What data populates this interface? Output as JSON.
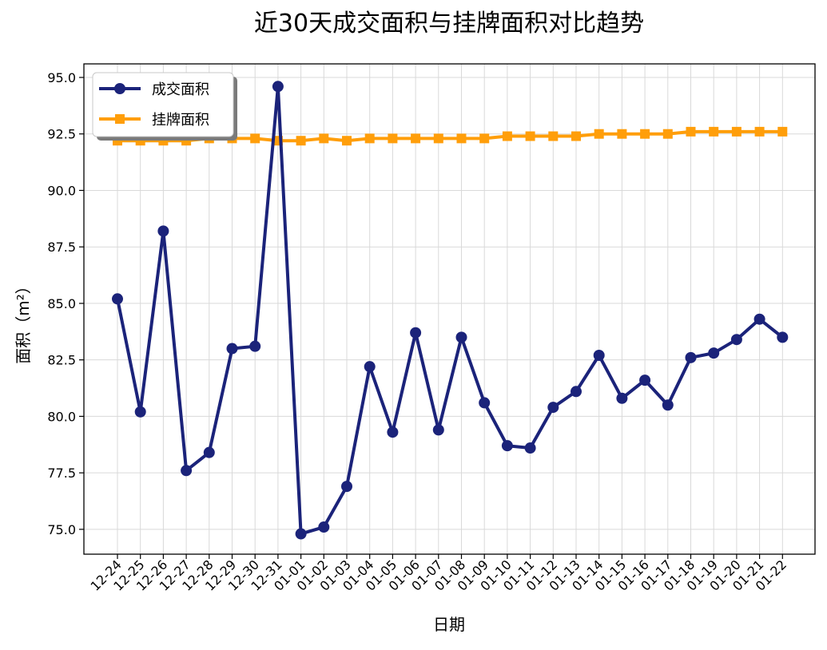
{
  "chart_data": {
    "type": "line",
    "title": "近30天成交面积与挂牌面积对比趋势",
    "xlabel": "日期",
    "ylabel": "面积（m²）",
    "categories": [
      "12-24",
      "12-25",
      "12-26",
      "12-27",
      "12-28",
      "12-29",
      "12-30",
      "12-31",
      "01-01",
      "01-02",
      "01-03",
      "01-04",
      "01-05",
      "01-06",
      "01-07",
      "01-08",
      "01-09",
      "01-10",
      "01-11",
      "01-12",
      "01-13",
      "01-14",
      "01-15",
      "01-16",
      "01-17",
      "01-18",
      "01-19",
      "01-20",
      "01-21",
      "01-22"
    ],
    "ylim": [
      73.9,
      95.6
    ],
    "yticks": [
      75.0,
      77.5,
      80.0,
      82.5,
      85.0,
      87.5,
      90.0,
      92.5,
      95.0
    ],
    "grid": true,
    "legend_position": "top-left",
    "series": [
      {
        "name": "成交面积",
        "color": "#1b237a",
        "marker": "circle",
        "values": [
          85.2,
          80.2,
          88.2,
          77.6,
          78.4,
          83.0,
          83.1,
          94.6,
          74.8,
          75.1,
          76.9,
          82.2,
          79.3,
          83.7,
          79.4,
          83.5,
          80.6,
          78.7,
          78.6,
          80.4,
          81.1,
          82.7,
          80.8,
          81.6,
          80.5,
          82.6,
          82.8,
          83.4,
          84.3,
          83.5
        ]
      },
      {
        "name": "挂牌面积",
        "color": "#ff9e0a",
        "marker": "square",
        "values": [
          92.2,
          92.2,
          92.2,
          92.2,
          92.3,
          92.3,
          92.3,
          92.2,
          92.2,
          92.3,
          92.2,
          92.3,
          92.3,
          92.3,
          92.3,
          92.3,
          92.3,
          92.4,
          92.4,
          92.4,
          92.4,
          92.5,
          92.5,
          92.5,
          92.5,
          92.6,
          92.6,
          92.6,
          92.6,
          92.6
        ]
      }
    ]
  }
}
